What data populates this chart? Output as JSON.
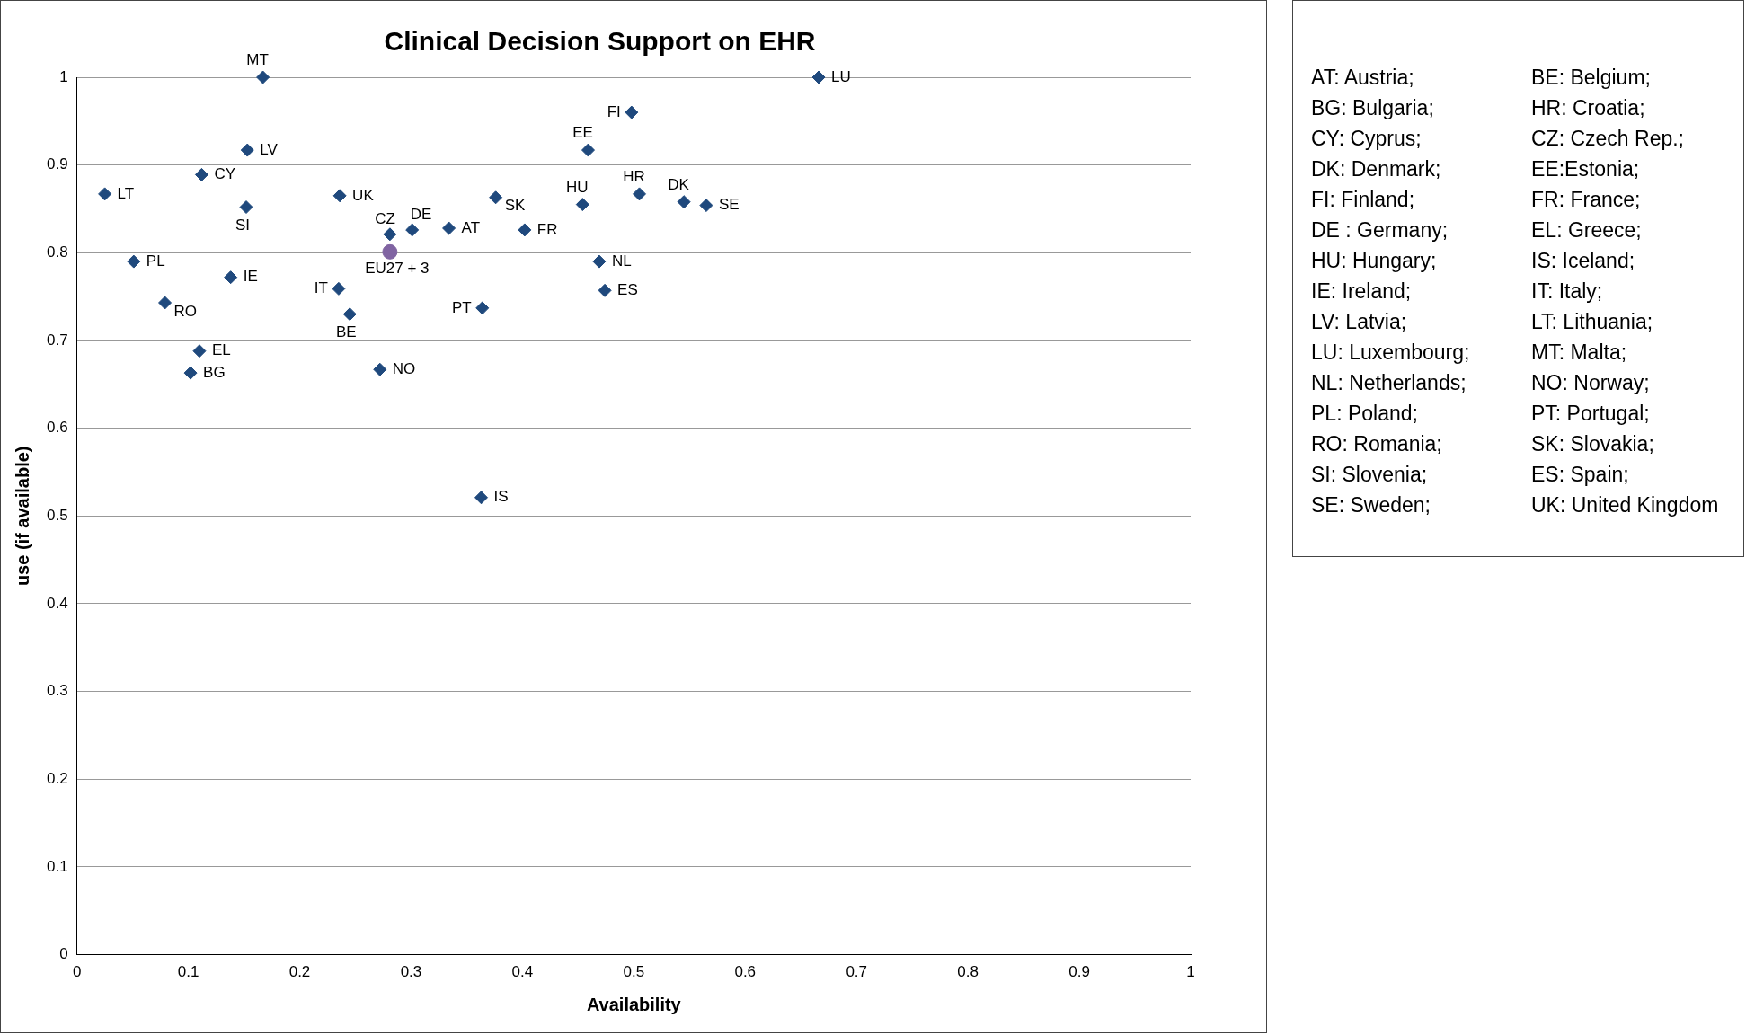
{
  "chart_data": {
    "type": "scatter",
    "title": "Clinical Decision Support on EHR",
    "xlabel": "Availability",
    "ylabel": "use (if available)",
    "xlim": [
      0,
      1
    ],
    "xticks": [
      0,
      0.1,
      0.2,
      0.3,
      0.4,
      0.5,
      0.6,
      0.7,
      0.8,
      0.9,
      1
    ],
    "ylim": [
      0,
      1
    ],
    "yticks": [
      0,
      0.1,
      0.2,
      0.3,
      0.4,
      0.5,
      0.6,
      0.7,
      0.8,
      0.9,
      1
    ],
    "grid": "y",
    "legend": false,
    "series": [
      {
        "color": "#1f497d",
        "marker": "diamond",
        "x": [
          0.167,
          0.666,
          0.498,
          0.153,
          0.459,
          0.112,
          0.025,
          0.236,
          0.505,
          0.376,
          0.545,
          0.565,
          0.454,
          0.152,
          0.334,
          0.301,
          0.402,
          0.281,
          0.051,
          0.469,
          0.138,
          0.235,
          0.474,
          0.079,
          0.364,
          0.245,
          0.11,
          0.102,
          0.272,
          0.363
        ],
        "values": [
          1.0,
          1.0,
          0.96,
          0.917,
          0.917,
          0.889,
          0.867,
          0.865,
          0.867,
          0.863,
          0.858,
          0.854,
          0.855,
          0.852,
          0.828,
          0.826,
          0.826,
          0.821,
          0.79,
          0.79,
          0.772,
          0.759,
          0.757,
          0.743,
          0.737,
          0.73,
          0.688,
          0.663,
          0.667,
          0.521
        ]
      },
      {
        "color": "#8064a2",
        "marker": "circle",
        "x": [
          0.281
        ],
        "values": [
          0.801
        ]
      }
    ],
    "annotations": [
      {
        "text": "MT",
        "x": 0.167,
        "y": 1.0
      },
      {
        "text": "LU",
        "x": 0.666,
        "y": 1.0
      },
      {
        "text": "FI",
        "x": 0.498,
        "y": 0.96
      },
      {
        "text": "LV",
        "x": 0.153,
        "y": 0.917
      },
      {
        "text": "EE",
        "x": 0.459,
        "y": 0.917
      },
      {
        "text": "CY",
        "x": 0.112,
        "y": 0.889
      },
      {
        "text": "LT",
        "x": 0.025,
        "y": 0.867
      },
      {
        "text": "UK",
        "x": 0.236,
        "y": 0.865
      },
      {
        "text": "HR",
        "x": 0.505,
        "y": 0.867
      },
      {
        "text": "SK",
        "x": 0.376,
        "y": 0.863
      },
      {
        "text": "DK",
        "x": 0.545,
        "y": 0.858
      },
      {
        "text": "SE",
        "x": 0.565,
        "y": 0.854
      },
      {
        "text": "HU",
        "x": 0.454,
        "y": 0.855
      },
      {
        "text": "SI",
        "x": 0.152,
        "y": 0.852
      },
      {
        "text": "AT",
        "x": 0.334,
        "y": 0.828
      },
      {
        "text": "DE",
        "x": 0.301,
        "y": 0.826
      },
      {
        "text": "FR",
        "x": 0.402,
        "y": 0.826
      },
      {
        "text": "CZ",
        "x": 0.281,
        "y": 0.821
      },
      {
        "text": "PL",
        "x": 0.051,
        "y": 0.79
      },
      {
        "text": "NL",
        "x": 0.469,
        "y": 0.79
      },
      {
        "text": "IE",
        "x": 0.138,
        "y": 0.772
      },
      {
        "text": "IT",
        "x": 0.235,
        "y": 0.759
      },
      {
        "text": "ES",
        "x": 0.474,
        "y": 0.757
      },
      {
        "text": "RO",
        "x": 0.079,
        "y": 0.743
      },
      {
        "text": "PT",
        "x": 0.364,
        "y": 0.737
      },
      {
        "text": "BE",
        "x": 0.245,
        "y": 0.73
      },
      {
        "text": "EL",
        "x": 0.11,
        "y": 0.688
      },
      {
        "text": "BG",
        "x": 0.102,
        "y": 0.663
      },
      {
        "text": "NO",
        "x": 0.272,
        "y": 0.667
      },
      {
        "text": "IS",
        "x": 0.363,
        "y": 0.521
      },
      {
        "text": "EU27 + 3",
        "x": 0.281,
        "y": 0.801
      },
      "AT: Austria;",
      "BE: Belgium;",
      "BG: Bulgaria;",
      "HR: Croatia;",
      "CY: Cyprus;",
      "CZ: Czech Rep.;",
      "DK: Denmark;",
      "EE:Estonia;",
      "FI: Finland;",
      "FR: France;",
      "DE : Germany;",
      "EL: Greece;",
      "HU: Hungary;",
      "IS: Iceland;",
      "IE: Ireland;",
      "IT: Italy;",
      "LV: Latvia;",
      "LT: Lithuania;",
      "LU: Luxembourg;",
      "MT: Malta;",
      "NL: Netherlands;",
      "NO: Norway;",
      "PL: Poland;",
      "PT: Portugal;",
      "RO: Romania;",
      "SK: Slovakia;",
      "SI: Slovenia;",
      "ES: Spain;",
      "SE: Sweden;",
      "UK: United Kingdom"
    ]
  }
}
